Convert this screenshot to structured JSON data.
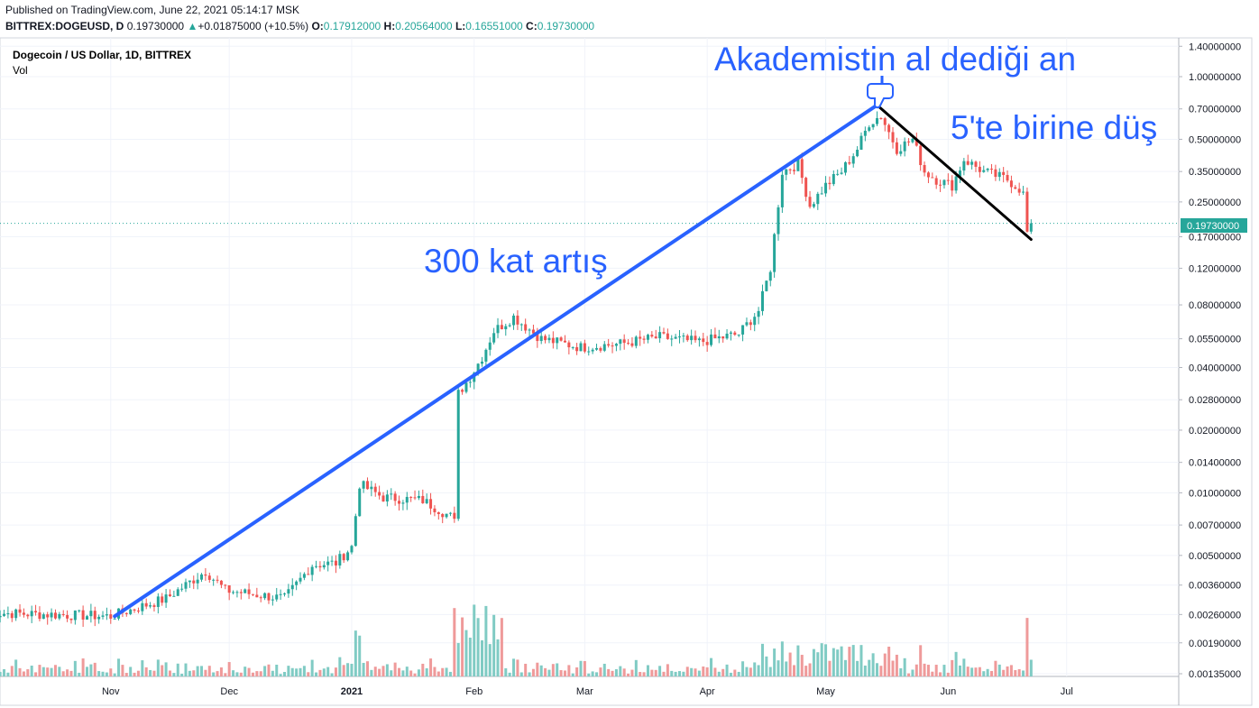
{
  "header": {
    "published": "Published on TradingView.com, June 22, 2021 05:14:17 MSK",
    "symbol": "BITTREX:DOGEUSD, D",
    "last": "0.19730000",
    "change_arrow": "▲",
    "change": "+0.01875000 (+10.5%)",
    "o_label": "O:",
    "o_value": "0.17912000",
    "h_label": "H:",
    "h_value": "0.20564000",
    "l_label": "L:",
    "l_value": "0.16551000",
    "c_label": "C:",
    "c_value": "0.19730000"
  },
  "legend": {
    "title": "Dogecoin / US Dollar, 1D, BITTREX",
    "sub": "Vol"
  },
  "price_label": "0.19730000",
  "annotations": {
    "peak": "Akademistin al dediği an",
    "fall": "5'te birine düş",
    "rise": "300 kat artış"
  },
  "colors": {
    "up": "#26a69a",
    "down": "#ef5350",
    "vol_up": "#80cbc4",
    "vol_down": "#ef9a9a",
    "trend_up": "#2962ff",
    "trend_down": "#000000",
    "annotation": "#2962ff",
    "price_line": "#26a69a"
  },
  "chart_data": {
    "type": "candlestick",
    "symbol": "DOGEUSD",
    "scale": "log",
    "y_ticks": [
      1.4,
      1.0,
      0.7,
      0.5,
      0.35,
      0.25,
      0.17,
      0.12,
      0.08,
      0.055,
      0.04,
      0.028,
      0.02,
      0.014,
      0.01,
      0.007,
      0.005,
      0.0036,
      0.0026,
      0.0019,
      0.00135
    ],
    "y_tick_labels": [
      "1.40000000",
      "1.00000000",
      "0.70000000",
      "0.50000000",
      "0.35000000",
      "0.25000000",
      "0.17000000",
      "0.12000000",
      "0.08000000",
      "0.05500000",
      "0.04000000",
      "0.02800000",
      "0.02000000",
      "0.01400000",
      "0.01000000",
      "0.00700000",
      "0.00500000",
      "0.00360000",
      "0.00260000",
      "0.00190000",
      "0.00135000"
    ],
    "x_ticks": [
      "Nov",
      "Dec",
      "2021",
      "Feb",
      "Mar",
      "Apr",
      "May",
      "Jun",
      "Jul"
    ],
    "x_tick_days": [
      31,
      61,
      92,
      123,
      151,
      182,
      212,
      243,
      273
    ],
    "series": [
      {
        "day": 0,
        "close": 0.00265
      },
      {
        "day": 31,
        "close": 0.00255
      },
      {
        "day": 45,
        "close": 0.0031
      },
      {
        "day": 55,
        "close": 0.0042
      },
      {
        "day": 60,
        "close": 0.0034
      },
      {
        "day": 75,
        "close": 0.0031
      },
      {
        "day": 82,
        "close": 0.0045
      },
      {
        "day": 88,
        "close": 0.0046
      },
      {
        "day": 92,
        "close": 0.0055
      },
      {
        "day": 94,
        "close": 0.011
      },
      {
        "day": 100,
        "close": 0.0095
      },
      {
        "day": 110,
        "close": 0.0092
      },
      {
        "day": 118,
        "close": 0.0075
      },
      {
        "day": 119,
        "close": 0.03
      },
      {
        "day": 122,
        "close": 0.036
      },
      {
        "day": 125,
        "close": 0.045
      },
      {
        "day": 128,
        "close": 0.06
      },
      {
        "day": 133,
        "close": 0.07
      },
      {
        "day": 140,
        "close": 0.055
      },
      {
        "day": 150,
        "close": 0.05
      },
      {
        "day": 160,
        "close": 0.052
      },
      {
        "day": 170,
        "close": 0.056
      },
      {
        "day": 180,
        "close": 0.053
      },
      {
        "day": 190,
        "close": 0.058
      },
      {
        "day": 195,
        "close": 0.075
      },
      {
        "day": 198,
        "close": 0.12
      },
      {
        "day": 201,
        "close": 0.35
      },
      {
        "day": 205,
        "close": 0.38
      },
      {
        "day": 208,
        "close": 0.24
      },
      {
        "day": 212,
        "close": 0.3
      },
      {
        "day": 216,
        "close": 0.35
      },
      {
        "day": 220,
        "close": 0.45
      },
      {
        "day": 223,
        "close": 0.6
      },
      {
        "day": 226,
        "close": 0.65
      },
      {
        "day": 230,
        "close": 0.45
      },
      {
        "day": 234,
        "close": 0.5
      },
      {
        "day": 237,
        "close": 0.35
      },
      {
        "day": 240,
        "close": 0.32
      },
      {
        "day": 244,
        "close": 0.3
      },
      {
        "day": 247,
        "close": 0.4
      },
      {
        "day": 252,
        "close": 0.35
      },
      {
        "day": 258,
        "close": 0.32
      },
      {
        "day": 262,
        "close": 0.28
      },
      {
        "day": 263,
        "close": 0.18
      },
      {
        "day": 264,
        "close": 0.1973
      }
    ],
    "trendlines": [
      {
        "from": {
          "day": 32,
          "price": 0.00255
        },
        "to": {
          "day": 225,
          "price": 0.73
        }
      },
      {
        "from": {
          "day": 225,
          "price": 0.73
        },
        "to": {
          "day": 264,
          "price": 0.165
        }
      }
    ]
  }
}
